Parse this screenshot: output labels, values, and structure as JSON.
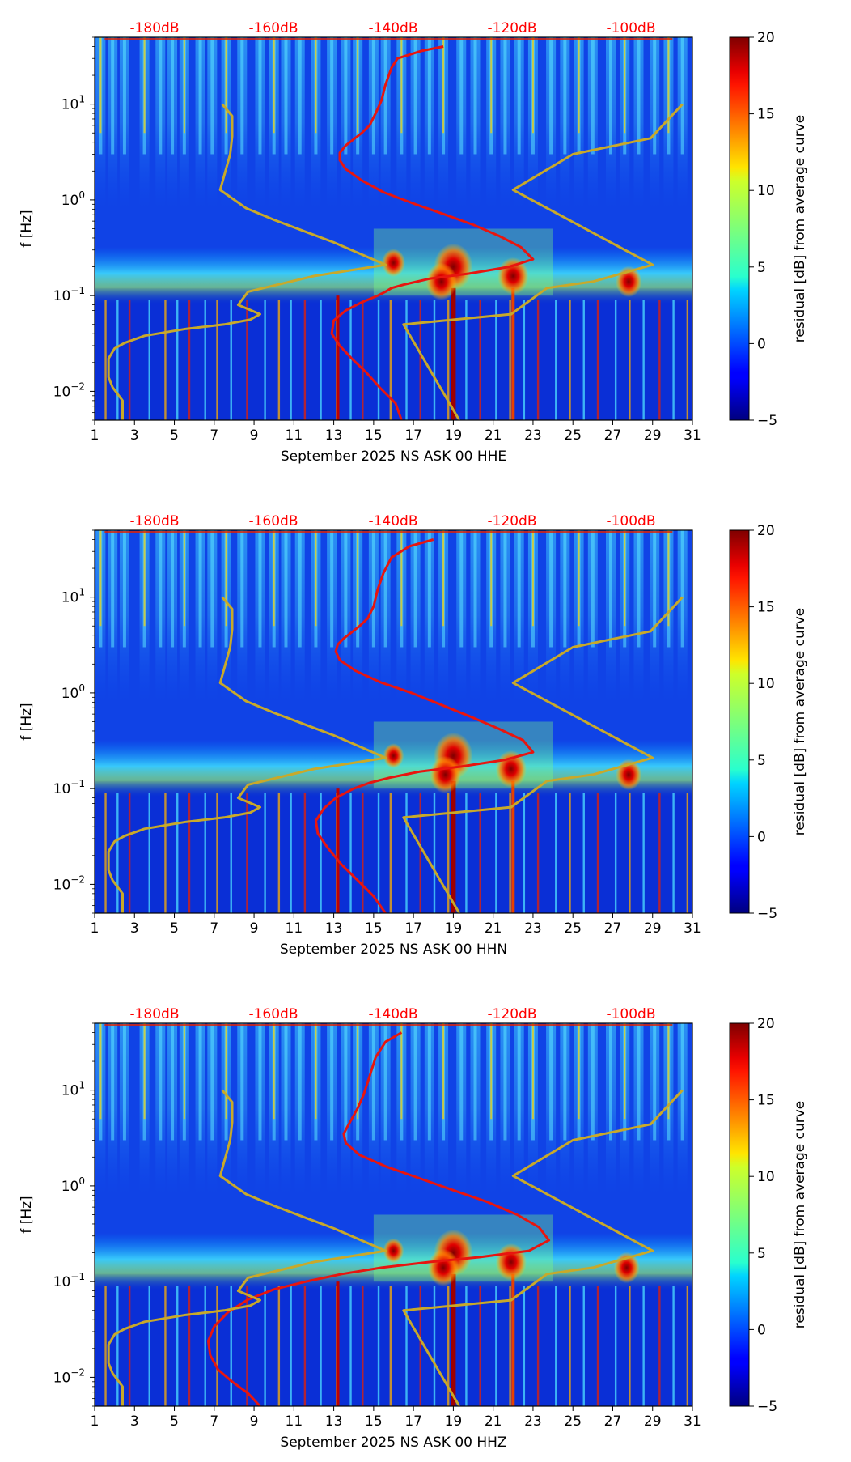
{
  "chart_data": [
    {
      "type": "heatmap",
      "xlabel": "September 2025 NS ASK 00 HHE",
      "ylabel": "f [Hz]",
      "x_ticks": [
        "1",
        "3",
        "5",
        "7",
        "9",
        "11",
        "13",
        "15",
        "17",
        "19",
        "21",
        "23",
        "25",
        "27",
        "29",
        "31"
      ],
      "x_range": [
        1,
        31
      ],
      "y_range_hz": [
        0.005,
        50
      ],
      "y_ticks": [
        {
          "base": "10",
          "exp": "1"
        },
        {
          "base": "10",
          "exp": "0"
        },
        {
          "base": "10",
          "exp": "−1"
        },
        {
          "base": "10",
          "exp": "−2"
        }
      ],
      "top_db_labels": [
        "-180dB",
        "-160dB",
        "-140dB",
        "-120dB",
        "-100dB"
      ],
      "colorbar": {
        "label": "residual [dB] from average curve",
        "ticks": [
          "20",
          "15",
          "10",
          "5",
          "0",
          "−5"
        ],
        "range": [
          -5,
          20
        ]
      },
      "day_stripes": [
        1.3,
        1.9,
        2.5,
        3.5,
        4.3,
        4.9,
        5.5,
        6.3,
        6.9,
        7.6,
        8.4,
        9.3,
        10.0,
        10.6,
        11.3,
        12.1,
        12.9,
        13.6,
        14.2,
        15.0,
        15.6,
        16.4,
        17.1,
        17.8,
        18.5,
        19.4,
        20.1,
        20.9,
        21.6,
        22.3,
        23.0,
        23.9,
        24.6,
        25.3,
        26.0,
        26.9,
        27.6,
        28.3,
        29.1,
        29.8,
        30.5
      ],
      "hotspots": [
        {
          "day": 19.0,
          "hz": 0.2,
          "dB": 20
        },
        {
          "day": 18.4,
          "hz": 0.14,
          "dB": 17
        },
        {
          "day": 22.0,
          "hz": 0.16,
          "dB": 17
        },
        {
          "day": 27.8,
          "hz": 0.14,
          "dB": 15
        },
        {
          "day": 16.0,
          "hz": 0.22,
          "dB": 14
        }
      ],
      "series": [
        {
          "name": "mean PSD",
          "color": "#e8150f",
          "x": [
            18.5,
            17.4,
            16.2,
            15.9,
            15.6,
            15.4,
            15.1,
            14.8,
            14.4,
            14.0,
            13.6,
            13.3,
            13.3,
            13.6,
            14.4,
            15.5,
            17.1,
            18.6,
            20.0,
            21.3,
            22.4,
            23.0,
            21.8,
            19.8,
            17.8,
            16.5,
            15.9,
            15.6,
            15.2,
            14.4,
            13.6,
            13.0,
            12.9,
            13.3,
            13.9,
            14.6,
            15.3,
            16.1,
            16.4
          ],
          "hz": [
            40,
            36,
            30,
            24,
            16,
            11,
            8,
            6,
            5,
            4.3,
            3.7,
            3.1,
            2.6,
            2.1,
            1.6,
            1.2,
            0.9,
            0.7,
            0.55,
            0.42,
            0.32,
            0.24,
            0.2,
            0.17,
            0.15,
            0.13,
            0.12,
            0.11,
            0.1,
            0.085,
            0.07,
            0.055,
            0.04,
            0.03,
            0.022,
            0.016,
            0.011,
            0.0075,
            0.005
          ]
        },
        {
          "name": "noise model",
          "color": "#c8a92a",
          "x": [
            2.4,
            2.4,
            1.9,
            1.7,
            1.7,
            2.0,
            2.5,
            3.5,
            5.6,
            7.5,
            8.8,
            9.3,
            8.2,
            8.7,
            12.0,
            15.6,
            13.0,
            10.0,
            8.6,
            7.3,
            7.8,
            7.9,
            7.9,
            7.4
          ],
          "hz": [
            0.005,
            0.008,
            0.011,
            0.014,
            0.022,
            0.028,
            0.032,
            0.038,
            0.045,
            0.05,
            0.056,
            0.064,
            0.08,
            0.11,
            0.16,
            0.21,
            0.36,
            0.62,
            0.82,
            1.27,
            3.0,
            4.6,
            7.5,
            10
          ]
        },
        {
          "name": "noise model",
          "color": "#c8a92a",
          "x": [
            19.3,
            16.5,
            21.9,
            23.7,
            26.0,
            29.0,
            22.0,
            25.0,
            28.9,
            30.5
          ],
          "hz": [
            0.005,
            0.05,
            0.064,
            0.12,
            0.14,
            0.21,
            1.27,
            3.0,
            4.4,
            10
          ]
        }
      ]
    },
    {
      "type": "heatmap",
      "xlabel": "September 2025 NS ASK 00 HHN",
      "ylabel": "f [Hz]",
      "x_ticks": [
        "1",
        "3",
        "5",
        "7",
        "9",
        "11",
        "13",
        "15",
        "17",
        "19",
        "21",
        "23",
        "25",
        "27",
        "29",
        "31"
      ],
      "x_range": [
        1,
        31
      ],
      "y_range_hz": [
        0.005,
        50
      ],
      "y_ticks": [
        {
          "base": "10",
          "exp": "1"
        },
        {
          "base": "10",
          "exp": "0"
        },
        {
          "base": "10",
          "exp": "−1"
        },
        {
          "base": "10",
          "exp": "−2"
        }
      ],
      "top_db_labels": [
        "-180dB",
        "-160dB",
        "-140dB",
        "-120dB",
        "-100dB"
      ],
      "colorbar": {
        "label": "residual [dB] from average curve",
        "ticks": [
          "20",
          "15",
          "10",
          "5",
          "0",
          "−5"
        ],
        "range": [
          -5,
          20
        ]
      },
      "day_stripes": [
        1.3,
        1.9,
        2.5,
        3.5,
        4.3,
        4.9,
        5.5,
        6.3,
        6.9,
        7.6,
        8.4,
        9.3,
        10.0,
        10.6,
        11.3,
        12.1,
        12.9,
        13.6,
        14.2,
        15.0,
        15.6,
        16.4,
        17.1,
        17.8,
        18.5,
        19.4,
        20.1,
        20.9,
        21.6,
        22.3,
        23.0,
        23.9,
        24.6,
        25.3,
        26.0,
        26.9,
        27.6,
        28.3,
        29.1,
        29.8,
        30.5
      ],
      "hotspots": [
        {
          "day": 19.0,
          "hz": 0.22,
          "dB": 20
        },
        {
          "day": 18.6,
          "hz": 0.14,
          "dB": 17
        },
        {
          "day": 21.9,
          "hz": 0.16,
          "dB": 17
        },
        {
          "day": 27.8,
          "hz": 0.14,
          "dB": 15
        },
        {
          "day": 16.0,
          "hz": 0.22,
          "dB": 13
        }
      ],
      "series": [
        {
          "name": "mean PSD",
          "color": "#e8150f",
          "x": [
            18.0,
            16.8,
            15.9,
            15.5,
            15.2,
            15.0,
            14.7,
            14.3,
            13.9,
            13.5,
            13.2,
            13.1,
            13.3,
            14.1,
            15.3,
            16.9,
            18.4,
            19.9,
            21.3,
            22.5,
            23.0,
            21.6,
            19.4,
            17.3,
            15.8,
            14.8,
            14.0,
            13.1,
            12.5,
            12.1,
            12.2,
            12.7,
            13.4,
            14.2,
            15.0,
            15.6
          ],
          "hz": [
            40,
            34,
            26,
            18,
            12,
            8,
            6,
            5,
            4.3,
            3.7,
            3.2,
            2.7,
            2.2,
            1.7,
            1.3,
            1.0,
            0.75,
            0.56,
            0.42,
            0.32,
            0.24,
            0.2,
            0.17,
            0.15,
            0.13,
            0.115,
            0.1,
            0.08,
            0.062,
            0.046,
            0.034,
            0.024,
            0.016,
            0.011,
            0.0075,
            0.005
          ]
        },
        {
          "name": "noise model",
          "color": "#c8a92a",
          "x": [
            2.4,
            2.4,
            1.9,
            1.7,
            1.7,
            2.0,
            2.5,
            3.5,
            5.6,
            7.5,
            8.8,
            9.3,
            8.2,
            8.7,
            12.0,
            15.6,
            13.0,
            10.0,
            8.6,
            7.3,
            7.8,
            7.9,
            7.9,
            7.4
          ],
          "hz": [
            0.005,
            0.008,
            0.011,
            0.014,
            0.022,
            0.028,
            0.032,
            0.038,
            0.045,
            0.05,
            0.056,
            0.064,
            0.08,
            0.11,
            0.16,
            0.21,
            0.36,
            0.62,
            0.82,
            1.27,
            3.0,
            4.6,
            7.5,
            10
          ]
        },
        {
          "name": "noise model",
          "color": "#c8a92a",
          "x": [
            19.3,
            16.5,
            21.9,
            23.7,
            26.0,
            29.0,
            22.0,
            25.0,
            28.9,
            30.5
          ],
          "hz": [
            0.005,
            0.05,
            0.064,
            0.12,
            0.14,
            0.21,
            1.27,
            3.0,
            4.4,
            10
          ]
        }
      ]
    },
    {
      "type": "heatmap",
      "xlabel": "September 2025 NS ASK 00 HHZ",
      "ylabel": "f [Hz]",
      "x_ticks": [
        "1",
        "3",
        "5",
        "7",
        "9",
        "11",
        "13",
        "15",
        "17",
        "19",
        "21",
        "23",
        "25",
        "27",
        "29",
        "31"
      ],
      "x_range": [
        1,
        31
      ],
      "y_range_hz": [
        0.005,
        50
      ],
      "y_ticks": [
        {
          "base": "10",
          "exp": "1"
        },
        {
          "base": "10",
          "exp": "0"
        },
        {
          "base": "10",
          "exp": "−1"
        },
        {
          "base": "10",
          "exp": "−2"
        }
      ],
      "top_db_labels": [
        "-180dB",
        "-160dB",
        "-140dB",
        "-120dB",
        "-100dB"
      ],
      "colorbar": {
        "label": "residual [dB] from average curve",
        "ticks": [
          "20",
          "15",
          "10",
          "5",
          "0",
          "−5"
        ],
        "range": [
          -5,
          20
        ]
      },
      "day_stripes": [
        1.3,
        1.9,
        2.5,
        3.5,
        4.3,
        4.9,
        5.5,
        6.3,
        6.9,
        7.6,
        8.4,
        9.3,
        10.0,
        10.6,
        11.3,
        12.1,
        12.9,
        13.6,
        14.2,
        15.0,
        15.6,
        16.4,
        17.1,
        17.8,
        18.5,
        19.4,
        20.1,
        20.9,
        21.6,
        22.3,
        23.0,
        23.9,
        24.6,
        25.3,
        26.0,
        26.9,
        27.6,
        28.3,
        29.1,
        29.8,
        30.5
      ],
      "hotspots": [
        {
          "day": 19.0,
          "hz": 0.2,
          "dB": 20
        },
        {
          "day": 18.5,
          "hz": 0.14,
          "dB": 17
        },
        {
          "day": 21.9,
          "hz": 0.16,
          "dB": 17
        },
        {
          "day": 27.7,
          "hz": 0.14,
          "dB": 15
        },
        {
          "day": 16.0,
          "hz": 0.21,
          "dB": 13
        }
      ],
      "series": [
        {
          "name": "mean PSD",
          "color": "#e8150f",
          "x": [
            16.4,
            15.6,
            15.1,
            14.8,
            14.5,
            14.2,
            13.9,
            13.7,
            13.5,
            13.6,
            14.3,
            15.6,
            17.3,
            19.0,
            20.7,
            22.2,
            23.3,
            23.8,
            22.8,
            20.3,
            17.8,
            15.4,
            13.4,
            11.6,
            10.0,
            8.7,
            7.7,
            7.0,
            6.7,
            6.8,
            7.2,
            7.9,
            8.7,
            9.3
          ],
          "hz": [
            40,
            32,
            22,
            14,
            9,
            6.5,
            5,
            4.2,
            3.5,
            2.8,
            2.1,
            1.6,
            1.2,
            0.9,
            0.68,
            0.5,
            0.37,
            0.27,
            0.21,
            0.18,
            0.16,
            0.14,
            0.12,
            0.1,
            0.083,
            0.065,
            0.048,
            0.034,
            0.024,
            0.017,
            0.012,
            0.009,
            0.0068,
            0.005
          ]
        },
        {
          "name": "noise model",
          "color": "#c8a92a",
          "x": [
            2.4,
            2.4,
            1.9,
            1.7,
            1.7,
            2.0,
            2.5,
            3.5,
            5.6,
            7.5,
            8.8,
            9.3,
            8.2,
            8.7,
            12.0,
            15.6,
            13.0,
            10.0,
            8.6,
            7.3,
            7.8,
            7.9,
            7.9,
            7.4
          ],
          "hz": [
            0.005,
            0.008,
            0.011,
            0.014,
            0.022,
            0.028,
            0.032,
            0.038,
            0.045,
            0.05,
            0.056,
            0.064,
            0.08,
            0.11,
            0.16,
            0.21,
            0.36,
            0.62,
            0.82,
            1.27,
            3.0,
            4.6,
            7.5,
            10
          ]
        },
        {
          "name": "noise model",
          "color": "#c8a92a",
          "x": [
            19.3,
            16.5,
            21.9,
            23.7,
            26.0,
            29.0,
            22.0,
            25.0,
            28.9,
            30.5
          ],
          "hz": [
            0.005,
            0.05,
            0.064,
            0.12,
            0.14,
            0.21,
            1.27,
            3.0,
            4.4,
            10
          ]
        }
      ]
    }
  ]
}
